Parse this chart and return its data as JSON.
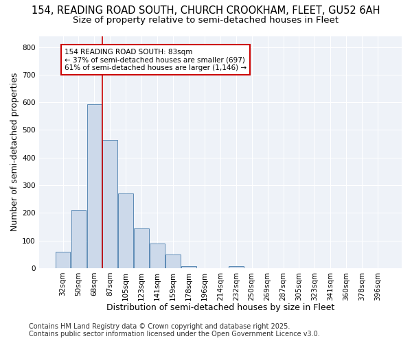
{
  "title_line1": "154, READING ROAD SOUTH, CHURCH CROOKHAM, FLEET, GU52 6AH",
  "title_line2": "Size of property relative to semi-detached houses in Fleet",
  "xlabel": "Distribution of semi-detached houses by size in Fleet",
  "ylabel": "Number of semi-detached properties",
  "categories": [
    "32sqm",
    "50sqm",
    "68sqm",
    "87sqm",
    "105sqm",
    "123sqm",
    "141sqm",
    "159sqm",
    "178sqm",
    "196sqm",
    "214sqm",
    "232sqm",
    "250sqm",
    "269sqm",
    "287sqm",
    "305sqm",
    "323sqm",
    "341sqm",
    "360sqm",
    "378sqm",
    "396sqm"
  ],
  "values": [
    60,
    210,
    594,
    465,
    270,
    143,
    90,
    50,
    8,
    0,
    0,
    8,
    0,
    0,
    0,
    0,
    0,
    0,
    0,
    0,
    0
  ],
  "bar_color": "#ccd9ea",
  "bar_edge_color": "#5a8ab5",
  "red_line_x": 2.5,
  "annotation_title": "154 READING ROAD SOUTH: 83sqm",
  "annotation_line1": "← 37% of semi-detached houses are smaller (697)",
  "annotation_line2": "61% of semi-detached houses are larger (1,146) →",
  "annotation_box_facecolor": "#ffffff",
  "annotation_box_edgecolor": "#cc0000",
  "ylim": [
    0,
    840
  ],
  "yticks": [
    0,
    100,
    200,
    300,
    400,
    500,
    600,
    700,
    800
  ],
  "bg_color": "#ffffff",
  "plot_bg_color": "#eef2f8",
  "grid_color": "#ffffff",
  "title_fontsize": 10.5,
  "subtitle_fontsize": 9.5,
  "axis_label_fontsize": 9,
  "tick_fontsize": 7.5,
  "footer_fontsize": 7,
  "footer_line1": "Contains HM Land Registry data © Crown copyright and database right 2025.",
  "footer_line2": "Contains public sector information licensed under the Open Government Licence v3.0."
}
